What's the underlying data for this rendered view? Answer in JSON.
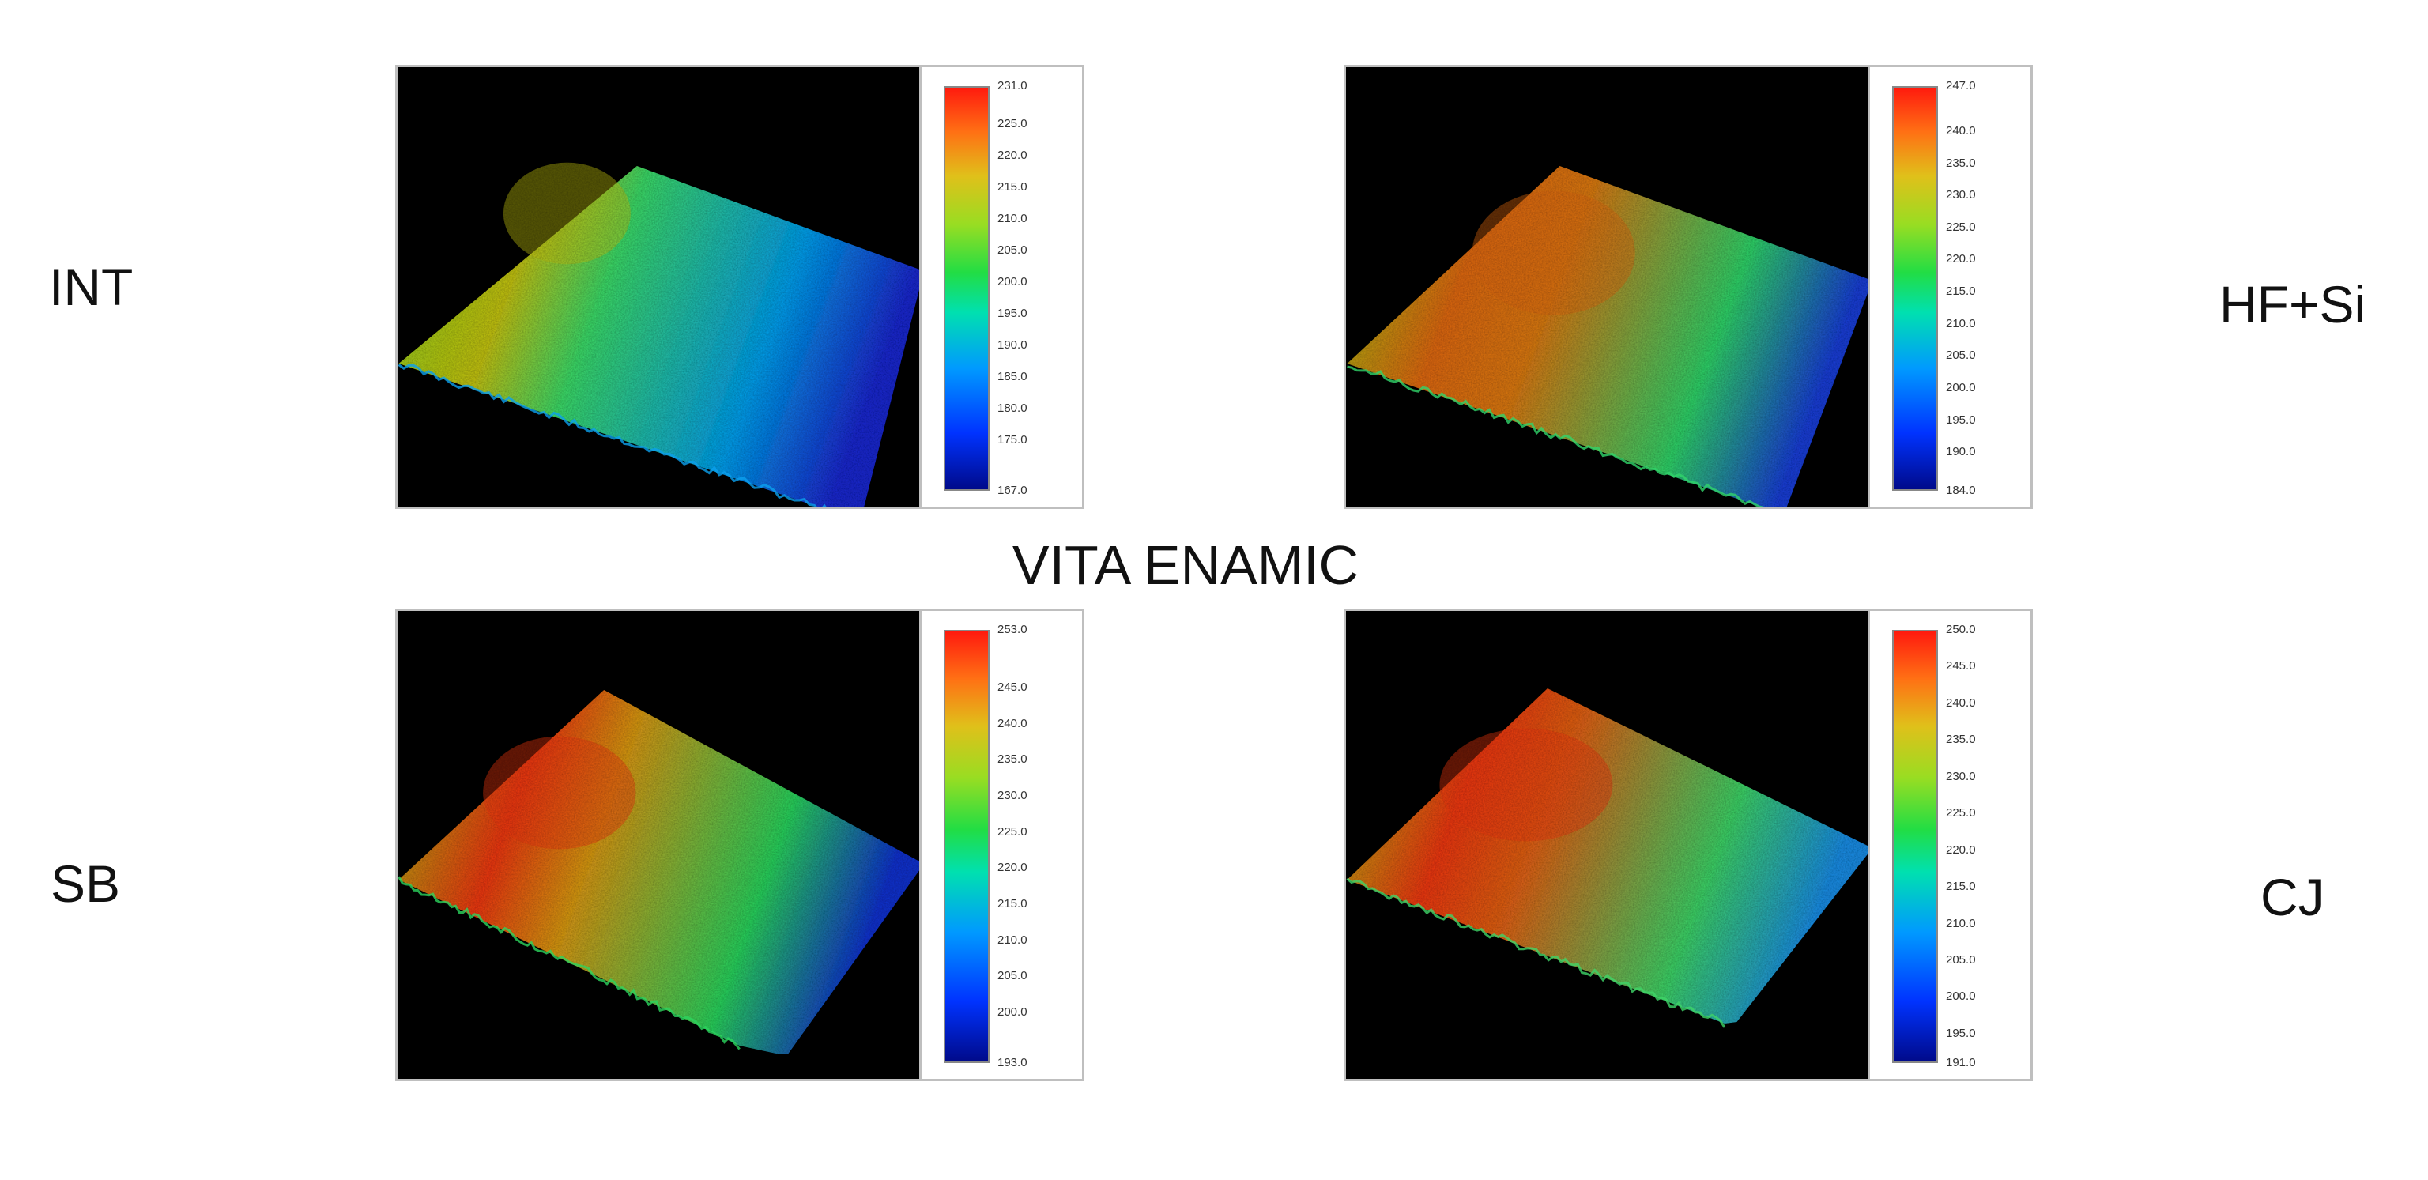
{
  "title": "VITA ENAMIC",
  "panels": [
    {
      "id": "int",
      "label": "INT",
      "scale_max": "231.0",
      "scale_min": "167.0",
      "ticks": [
        "225.0",
        "220.0",
        "215.0",
        "210.0",
        "205.0",
        "200.0",
        "195.0",
        "190.0",
        "185.0",
        "180.0",
        "175.0"
      ]
    },
    {
      "id": "hfsi",
      "label": "HF+Si",
      "scale_max": "247.0",
      "scale_min": "184.0",
      "ticks": [
        "240.0",
        "235.0",
        "230.0",
        "225.0",
        "220.0",
        "215.0",
        "210.0",
        "205.0",
        "200.0",
        "195.0",
        "190.0"
      ]
    },
    {
      "id": "sb",
      "label": "SB",
      "scale_max": "253.0",
      "scale_min": "193.0",
      "ticks": [
        "245.0",
        "240.0",
        "235.0",
        "230.0",
        "225.0",
        "220.0",
        "215.0",
        "210.0",
        "205.0",
        "200.0"
      ]
    },
    {
      "id": "cj",
      "label": "CJ",
      "scale_max": "250.0",
      "scale_min": "191.0",
      "ticks": [
        "245.0",
        "240.0",
        "235.0",
        "230.0",
        "225.0",
        "220.0",
        "215.0",
        "210.0",
        "205.0",
        "200.0",
        "195.0"
      ]
    }
  ],
  "colors": {
    "low": "#000a8a",
    "mid": "#22dd44",
    "high": "#ff1a0e"
  }
}
